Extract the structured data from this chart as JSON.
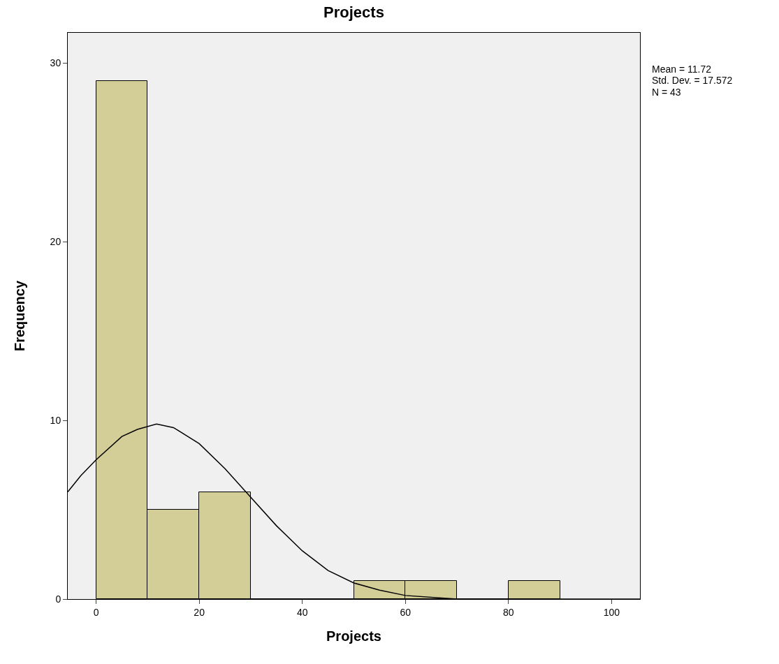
{
  "chart_data": {
    "type": "histogram",
    "title": "Projects",
    "xlabel": "Projects",
    "ylabel": "Frequency",
    "bins": [
      0,
      10,
      20,
      30,
      40,
      50,
      60,
      70,
      80,
      90
    ],
    "values": [
      29,
      5,
      6,
      0,
      0,
      1,
      1,
      0,
      1
    ],
    "color": "#d3ce97",
    "series": [
      {
        "type": "line",
        "color": "#000000",
        "x": [
          -5.5,
          -3,
          0,
          5,
          8,
          11.72,
          15,
          20,
          25,
          30,
          35,
          40,
          45,
          50,
          55,
          60,
          70,
          80,
          90,
          105.5
        ],
        "values": [
          6.0,
          6.9,
          7.8,
          9.1,
          9.5,
          9.8,
          9.6,
          8.7,
          7.3,
          5.7,
          4.1,
          2.7,
          1.6,
          0.9,
          0.5,
          0.2,
          0.0,
          0.0,
          0.0,
          0.0
        ]
      }
    ],
    "xlim": [
      -5.5,
      105.5
    ],
    "xticks": [
      0,
      20,
      40,
      60,
      80,
      100
    ],
    "ylim": [
      0,
      31.7
    ],
    "yticks": [
      0,
      10,
      20,
      30
    ],
    "annotations": [
      "Mean = 11.72",
      "Std. Dev. = 17.572",
      "N = 43"
    ],
    "grid": false
  }
}
